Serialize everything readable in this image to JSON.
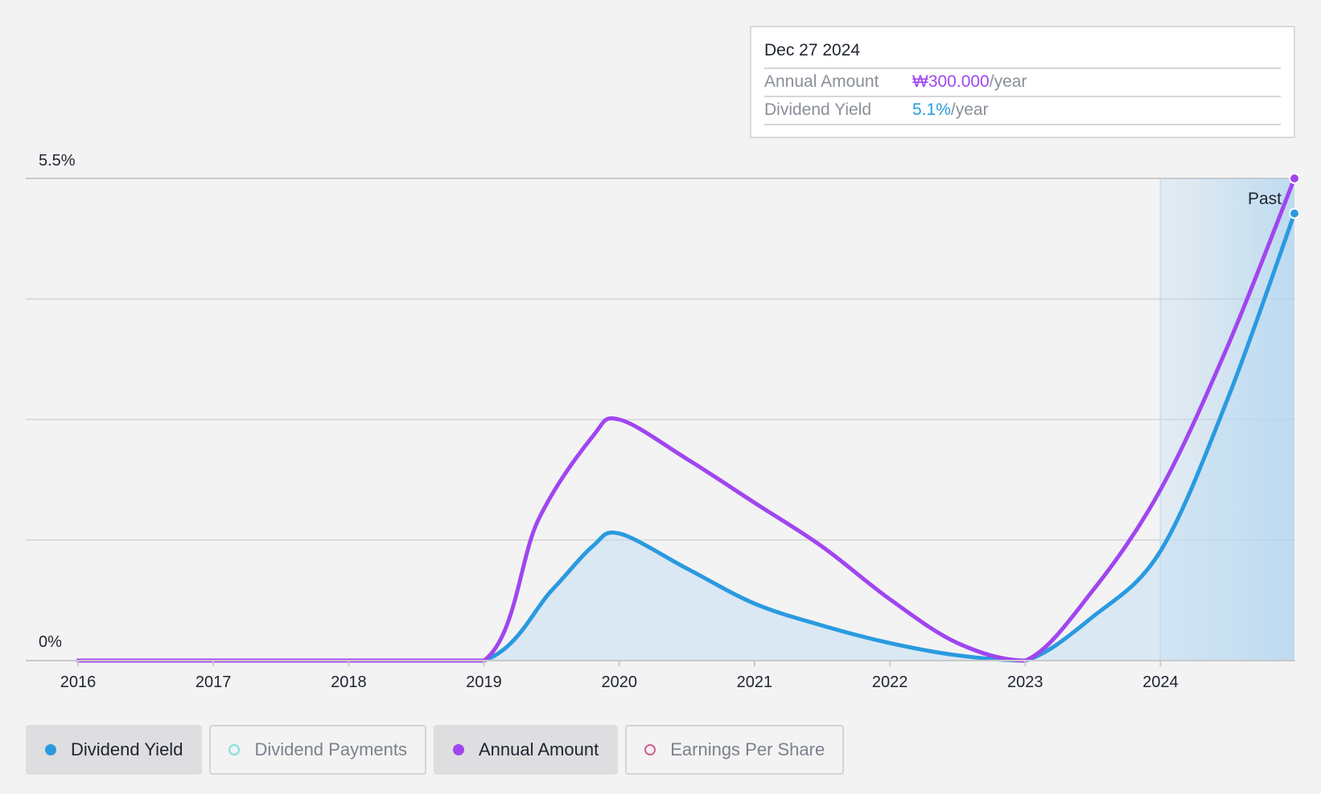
{
  "tooltip": {
    "date": "Dec 27 2024",
    "rows": [
      {
        "label": "Annual Amount",
        "value": "₩300.000",
        "unit": "/year"
      },
      {
        "label": "Dividend Yield",
        "value": "5.1%",
        "unit": "/year"
      }
    ]
  },
  "past_label": "Past",
  "legend": [
    {
      "label": "Dividend Yield",
      "color": "#2a9ae0",
      "active": true,
      "hollow": false
    },
    {
      "label": "Dividend Payments",
      "color": "#7fe0d8",
      "active": false,
      "hollow": true
    },
    {
      "label": "Annual Amount",
      "color": "#a046f0",
      "active": true,
      "hollow": false
    },
    {
      "label": "Earnings Per Share",
      "color": "#d06090",
      "active": false,
      "hollow": true
    }
  ],
  "colors": {
    "dividend_yield": "#2a9ae0",
    "annual_amount": "#a046f0",
    "past_region": "#a8d0ee"
  },
  "chart_data": {
    "type": "line",
    "x_ticks": [
      "2016",
      "2017",
      "2018",
      "2019",
      "2020",
      "2021",
      "2022",
      "2023",
      "2024"
    ],
    "y_ticks": [
      "0%",
      "5.5%"
    ],
    "ylim": [
      0,
      5.5
    ],
    "xlim": [
      2016.0,
      2024.99
    ],
    "past_region_start": 2024.0,
    "series": [
      {
        "name": "Dividend Yield",
        "key": "dividend_yield",
        "fill": true,
        "points": [
          [
            2016.0,
            0
          ],
          [
            2017.0,
            0
          ],
          [
            2018.0,
            0
          ],
          [
            2019.0,
            0
          ],
          [
            2019.5,
            0.8
          ],
          [
            2019.8,
            1.3
          ],
          [
            2020.0,
            1.45
          ],
          [
            2020.5,
            1.05
          ],
          [
            2021.0,
            0.65
          ],
          [
            2021.5,
            0.4
          ],
          [
            2022.0,
            0.2
          ],
          [
            2022.5,
            0.06
          ],
          [
            2023.0,
            0
          ],
          [
            2023.5,
            0.5
          ],
          [
            2024.0,
            1.25
          ],
          [
            2024.5,
            3.0
          ],
          [
            2024.99,
            5.1
          ]
        ]
      },
      {
        "name": "Annual Amount",
        "key": "annual_amount",
        "fill": false,
        "points": [
          [
            2016.0,
            0
          ],
          [
            2017.0,
            0
          ],
          [
            2018.0,
            0
          ],
          [
            2019.0,
            0
          ],
          [
            2019.4,
            1.6
          ],
          [
            2019.8,
            2.55
          ],
          [
            2020.0,
            2.75
          ],
          [
            2020.5,
            2.3
          ],
          [
            2021.0,
            1.8
          ],
          [
            2021.5,
            1.3
          ],
          [
            2022.0,
            0.7
          ],
          [
            2022.5,
            0.2
          ],
          [
            2023.0,
            0
          ],
          [
            2023.5,
            0.8
          ],
          [
            2024.0,
            1.95
          ],
          [
            2024.5,
            3.6
          ],
          [
            2024.99,
            5.5
          ]
        ]
      }
    ]
  }
}
